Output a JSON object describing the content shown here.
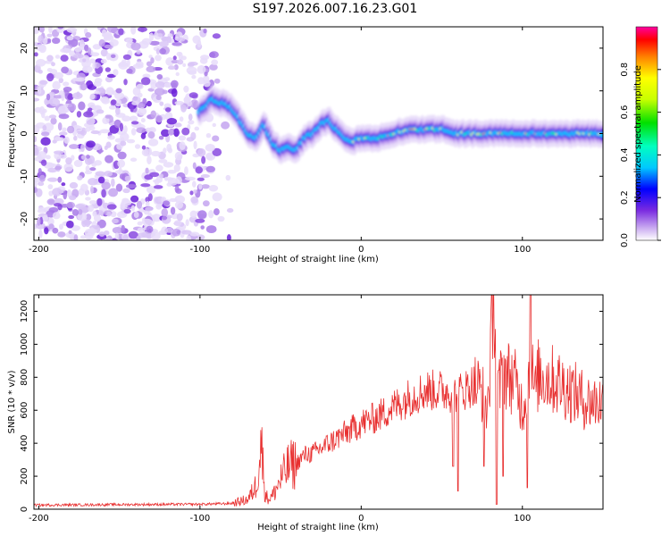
{
  "title": "S197.2026.007.16.23.G01",
  "chart_data": [
    {
      "type": "heatmap",
      "xlabel": "Height of straight line (km)",
      "ylabel": "Frequency (Hz)",
      "xlim": [
        -203,
        150
      ],
      "ylim": [
        -25,
        25
      ],
      "x_ticks": [
        -200,
        -100,
        0,
        100
      ],
      "y_ticks": [
        -20,
        -10,
        0,
        10,
        20
      ],
      "colorbar": {
        "label": "Normalized spectral amplitude",
        "range": [
          0,
          1
        ],
        "ticks": [
          "0.0",
          "0.2",
          "0.4",
          "0.6",
          "0.8"
        ],
        "tick_values": [
          0,
          0.2,
          0.4,
          0.6,
          0.8
        ]
      },
      "ridge_frequency": {
        "x": [
          -100,
          -92,
          -85,
          -80,
          -75,
          -70,
          -65,
          -60,
          -55,
          -50,
          -45,
          -40,
          -35,
          -30,
          -25,
          -20,
          -15,
          -10,
          -5,
          0,
          10,
          20,
          30,
          40,
          50,
          60,
          70,
          80,
          90,
          100,
          110,
          120,
          130,
          140,
          150
        ],
        "y": [
          5,
          8,
          7,
          6,
          3,
          0,
          -1,
          2,
          -2,
          -4,
          -3,
          -4,
          -1,
          0,
          2,
          3,
          1,
          -1,
          -2,
          -1,
          -1,
          0,
          1,
          1,
          1,
          0,
          0,
          0,
          0,
          0,
          0,
          0,
          0,
          0,
          0
        ]
      },
      "noise_region_x": [
        -203,
        -80
      ]
    },
    {
      "type": "line",
      "xlabel": "Height of straight line (km)",
      "ylabel": "SNR (10 * v/v)",
      "xlim": [
        -203,
        150
      ],
      "ylim": [
        0,
        1300
      ],
      "x_ticks": [
        -200,
        -100,
        0,
        100
      ],
      "y_ticks": [
        0,
        200,
        400,
        600,
        800,
        1000,
        1200
      ],
      "series": [
        {
          "name": "SNR",
          "color": "#e83030",
          "x": [
            -203,
            -150,
            -100,
            -80,
            -70,
            -65,
            -62,
            -60,
            -58,
            -55,
            -50,
            -45,
            -40,
            -35,
            -30,
            -20,
            -10,
            0,
            10,
            20,
            30,
            40,
            50,
            60,
            70,
            75,
            78,
            80,
            82,
            85,
            88,
            90,
            95,
            100,
            103,
            105,
            108,
            110,
            120,
            130,
            140,
            150
          ],
          "y": [
            25,
            28,
            30,
            35,
            60,
            150,
            420,
            120,
            60,
            80,
            180,
            260,
            280,
            330,
            340,
            400,
            460,
            520,
            560,
            620,
            680,
            720,
            720,
            700,
            760,
            720,
            600,
            850,
            1300,
            700,
            850,
            820,
            780,
            620,
            700,
            900,
            700,
            820,
            780,
            720,
            650,
            650
          ]
        }
      ],
      "spikes": [
        {
          "x": 60,
          "y": 110
        },
        {
          "x": 57,
          "y": 260
        },
        {
          "x": 82,
          "y": 1300
        },
        {
          "x": 84,
          "y": 30
        },
        {
          "x": 76,
          "y": 260
        },
        {
          "x": 105,
          "y": 1300
        },
        {
          "x": 103,
          "y": 130
        },
        {
          "x": 88,
          "y": 200
        }
      ]
    }
  ]
}
